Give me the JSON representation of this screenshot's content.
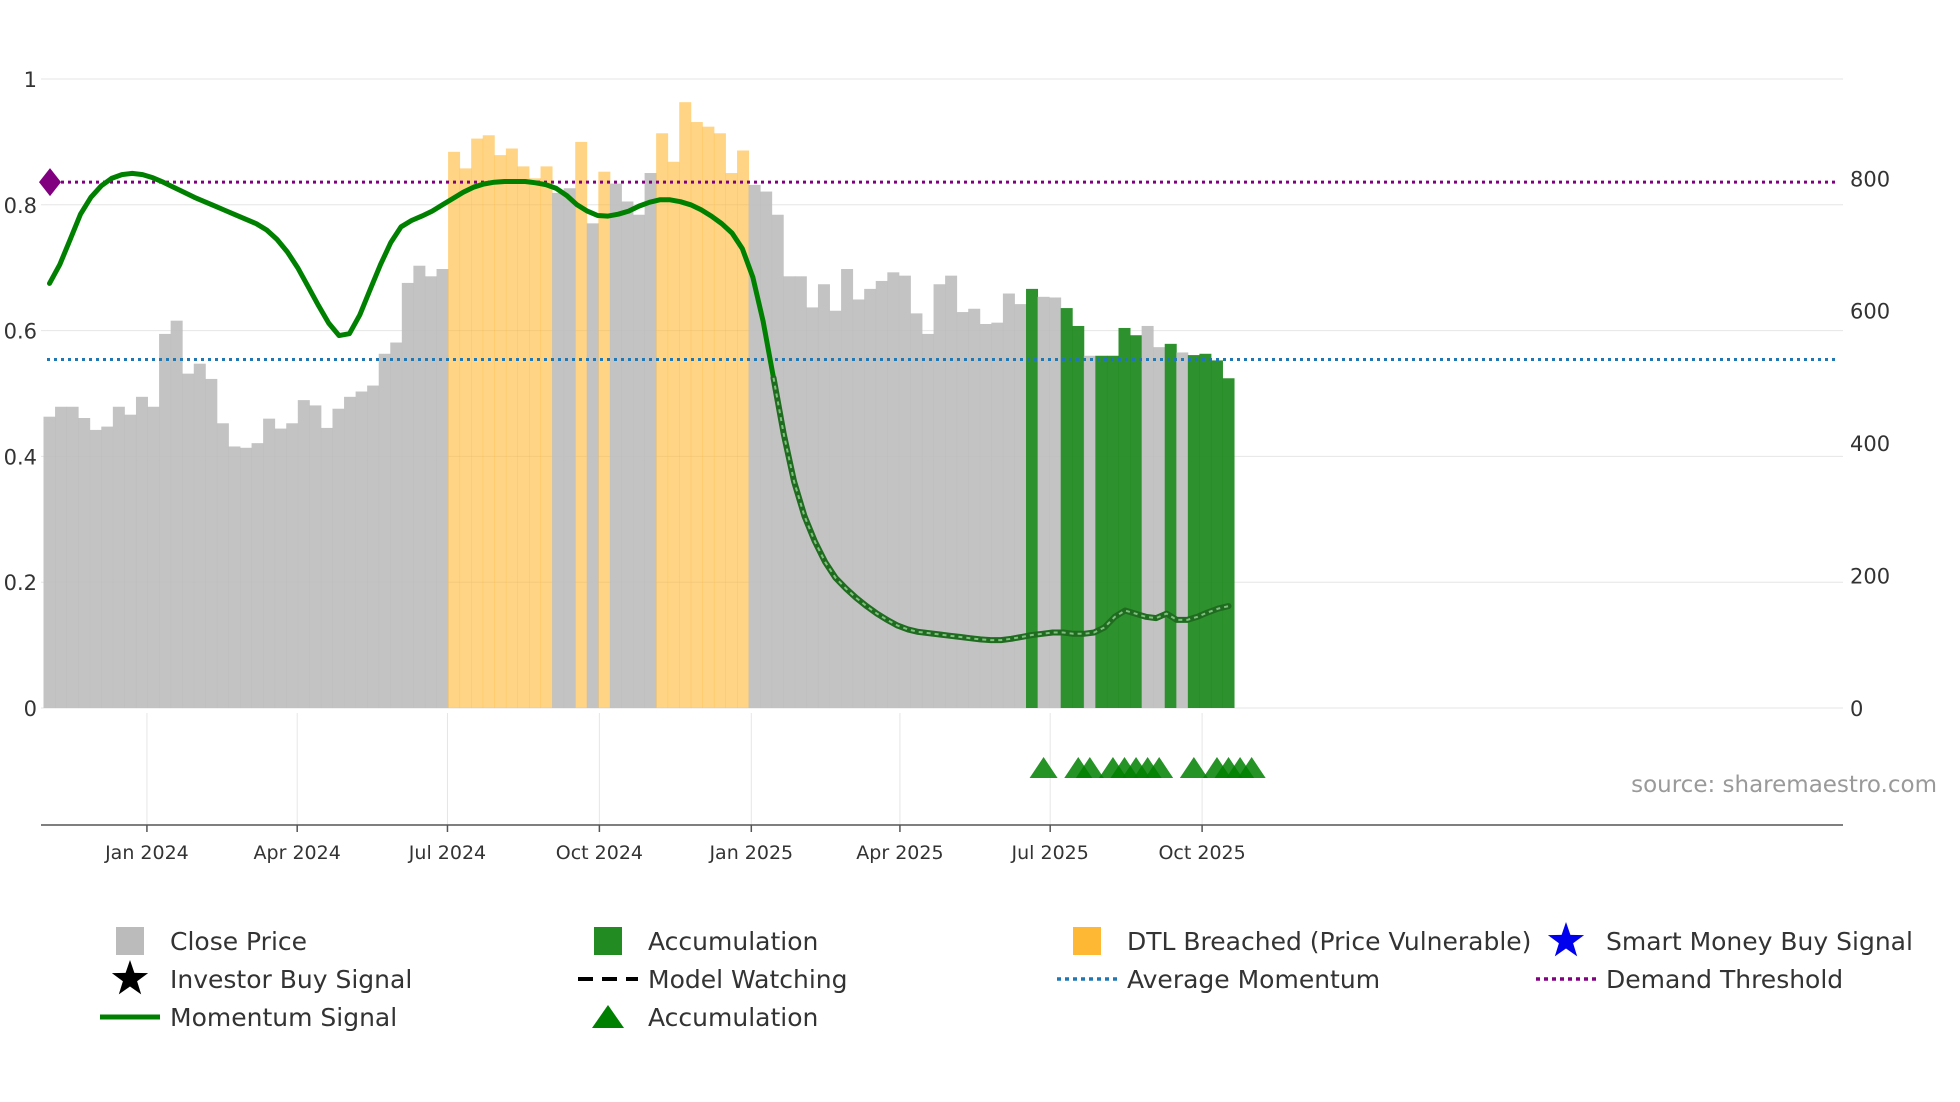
{
  "chart_data": {
    "type": "bar",
    "title": "",
    "source": "source: sharemaestro.com",
    "x_start": "2023-11-03",
    "x_step_days": 7,
    "x_ticks": [
      {
        "date": "2024-01-01",
        "label": "Jan 2024"
      },
      {
        "date": "2024-04-01",
        "label": "Apr 2024"
      },
      {
        "date": "2024-07-01",
        "label": "Jul 2024"
      },
      {
        "date": "2024-10-01",
        "label": "Oct 2024"
      },
      {
        "date": "2025-01-01",
        "label": "Jan 2025"
      },
      {
        "date": "2025-04-01",
        "label": "Apr 2025"
      },
      {
        "date": "2025-07-01",
        "label": "Jul 2025"
      },
      {
        "date": "2025-10-01",
        "label": "Oct 2025"
      }
    ],
    "y_left": {
      "ticks": [
        0,
        0.2,
        0.4,
        0.6,
        0.8,
        1
      ],
      "labels": [
        "0",
        "0.2",
        "0.4",
        "0.6",
        "0.8",
        "1"
      ],
      "ylim": [
        0,
        1
      ]
    },
    "y_right": {
      "ticks": [
        0,
        200,
        400,
        600,
        800
      ],
      "labels": [
        "0",
        "200",
        "400",
        "600",
        "800"
      ],
      "ylim": [
        0,
        950
      ]
    },
    "close_price": [
      440,
      455,
      455,
      438,
      420,
      425,
      455,
      443,
      470,
      455,
      565,
      585,
      505,
      520,
      497,
      430,
      395,
      393,
      400,
      437,
      422,
      430,
      465,
      457,
      423,
      452,
      470,
      478,
      487,
      535,
      552,
      642,
      668,
      652,
      663,
      840,
      815,
      860,
      865,
      835,
      845,
      818,
      800,
      818,
      778,
      785,
      855,
      732,
      810,
      792,
      765,
      745,
      808,
      868,
      825,
      915,
      885,
      878,
      868,
      808,
      842,
      790,
      780,
      745,
      652,
      652,
      605,
      640,
      600,
      663,
      617,
      633,
      645,
      658,
      653,
      596,
      565,
      640,
      653,
      598,
      603,
      580,
      582,
      626,
      610,
      633,
      621,
      620,
      604,
      577,
      532,
      532,
      532,
      574,
      563,
      577,
      545,
      550,
      537,
      533,
      535,
      525,
      498
    ],
    "bar_state": [
      "close",
      "close",
      "close",
      "close",
      "close",
      "close",
      "close",
      "close",
      "close",
      "close",
      "close",
      "close",
      "close",
      "close",
      "close",
      "close",
      "close",
      "close",
      "close",
      "close",
      "close",
      "close",
      "close",
      "close",
      "close",
      "close",
      "close",
      "close",
      "close",
      "close",
      "close",
      "close",
      "close",
      "close",
      "close",
      "dtl",
      "dtl",
      "dtl",
      "dtl",
      "dtl",
      "dtl",
      "dtl",
      "dtl",
      "dtl",
      "close",
      "close",
      "dtl",
      "close",
      "dtl",
      "close",
      "close",
      "close",
      "close",
      "dtl",
      "dtl",
      "dtl",
      "dtl",
      "dtl",
      "dtl",
      "dtl",
      "dtl",
      "close",
      "close",
      "close",
      "close",
      "close",
      "close",
      "close",
      "close",
      "close",
      "close",
      "close",
      "close",
      "close",
      "close",
      "close",
      "close",
      "close",
      "close",
      "close",
      "close",
      "close",
      "close",
      "close",
      "close",
      "acc",
      "close",
      "close",
      "acc",
      "acc",
      "close",
      "acc",
      "acc",
      "acc",
      "acc",
      "close",
      "close",
      "acc",
      "close",
      "acc",
      "acc",
      "acc",
      "acc"
    ],
    "momentum_signal": [
      0.675,
      0.705,
      0.745,
      0.785,
      0.812,
      0.83,
      0.842,
      0.848,
      0.85,
      0.848,
      0.843,
      0.836,
      0.828,
      0.82,
      0.812,
      0.805,
      0.798,
      0.791,
      0.784,
      0.777,
      0.77,
      0.76,
      0.745,
      0.725,
      0.7,
      0.67,
      0.64,
      0.612,
      0.592,
      0.595,
      0.625,
      0.665,
      0.705,
      0.74,
      0.765,
      0.775,
      0.782,
      0.79,
      0.8,
      0.81,
      0.82,
      0.828,
      0.833,
      0.836,
      0.837,
      0.837,
      0.837,
      0.835,
      0.832,
      0.826,
      0.815,
      0.8,
      0.79,
      0.783,
      0.782,
      0.785,
      0.79,
      0.798,
      0.804,
      0.808,
      0.808,
      0.805,
      0.8,
      0.792,
      0.782,
      0.77,
      0.755,
      0.73,
      0.685,
      0.615,
      0.525,
      0.435,
      0.36,
      0.305,
      0.265,
      0.232,
      0.207,
      0.19,
      0.175,
      0.162,
      0.15,
      0.14,
      0.131,
      0.125,
      0.121,
      0.119,
      0.117,
      0.115,
      0.113,
      0.111,
      0.109,
      0.108,
      0.108,
      0.11,
      0.113,
      0.116,
      0.118,
      0.12,
      0.12,
      0.118,
      0.118,
      0.12,
      0.128,
      0.145,
      0.155,
      0.15,
      0.145,
      0.143,
      0.15,
      0.14,
      0.14,
      0.145,
      0.152,
      0.158,
      0.162
    ],
    "momentum_emphasis_start": 63,
    "average_momentum": 0.554,
    "demand_threshold": 0.836,
    "threshold_marker": {
      "shape": "diamond",
      "color": "#800080"
    },
    "accumulation_markers": [
      86,
      89,
      90,
      92,
      93,
      94,
      95,
      96,
      99,
      101,
      102,
      103,
      104
    ],
    "colors": {
      "close_price": "#bdbdbd",
      "accumulation": "#228b22",
      "dtl": "#ffb833",
      "momentum": "#008000",
      "average_momentum": "#1f77b4",
      "demand_threshold": "#800080",
      "markers": "#008000",
      "axis": "#555555",
      "grid": "#e6e6e6"
    },
    "legend": [
      {
        "key": "close_price",
        "label": "Close Price",
        "marker": "square",
        "color": "#bbbbbb"
      },
      {
        "key": "accumulation_bar",
        "label": "Accumulation",
        "marker": "square",
        "color": "#228b22"
      },
      {
        "key": "dtl",
        "label": "DTL Breached (Price Vulnerable)",
        "marker": "square",
        "color": "#ffb833"
      },
      {
        "key": "smart_money",
        "label": "Smart Money Buy Signal",
        "marker": "star",
        "color": "#0000ee"
      },
      {
        "key": "investor_buy",
        "label": "Investor Buy Signal",
        "marker": "star",
        "color": "#000000"
      },
      {
        "key": "model_watching",
        "label": "Model Watching",
        "marker": "dash",
        "color": "#000000"
      },
      {
        "key": "average_momentum",
        "label": "Average Momentum",
        "marker": "dot",
        "color": "#1f77b4"
      },
      {
        "key": "demand_threshold",
        "label": "Demand Threshold",
        "marker": "dot",
        "color": "#800080"
      },
      {
        "key": "momentum_signal",
        "label": "Momentum Signal",
        "marker": "line",
        "color": "#008000"
      },
      {
        "key": "accumulation_marker",
        "label": "Accumulation",
        "marker": "triangle",
        "color": "#008000"
      }
    ]
  }
}
